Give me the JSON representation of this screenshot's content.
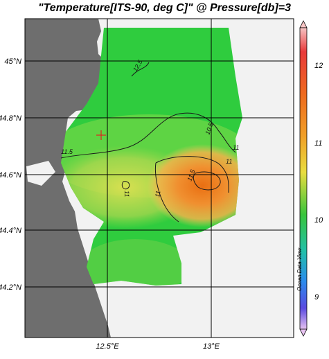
{
  "title": "\"Temperature[ITS-90, deg C]\" @ Pressure[db]=3",
  "map": {
    "lat_labels": [
      "45°N",
      "44.8°N",
      "44.6°N",
      "44.4°N",
      "44.2°N"
    ],
    "lon_labels": [
      "12.5°E",
      "13°E"
    ],
    "contour_labels": [
      "12.5",
      "10.5",
      "11",
      "11.5",
      "11",
      "11",
      "11.5",
      "11"
    ],
    "station_marker": "red-cross",
    "colors": {
      "land": "#6e6e6e",
      "sea_nodata": "#f2f2f2",
      "cold_green": "#2ecc40",
      "warm_orange": "#ee8a1a"
    }
  },
  "colorbar": {
    "tick_labels": [
      "12",
      "11",
      "10",
      "9"
    ],
    "range": [
      8.6,
      12.8
    ]
  },
  "branding": "Ocean Data View"
}
